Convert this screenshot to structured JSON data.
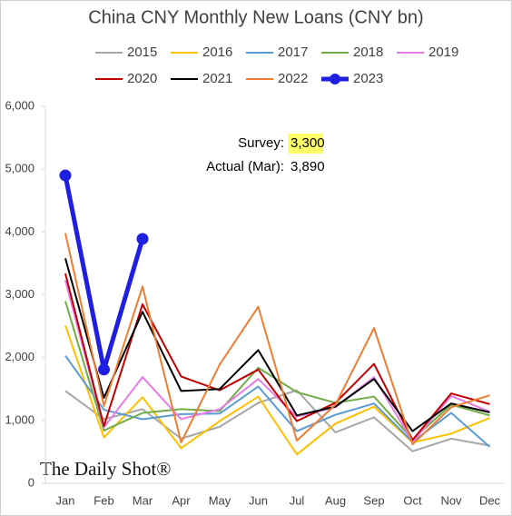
{
  "chart_data": {
    "type": "line",
    "title": "China CNY Monthly New Loans (CNY bn)",
    "categories": [
      "Jan",
      "Feb",
      "Mar",
      "Apr",
      "May",
      "Jun",
      "Jul",
      "Aug",
      "Sep",
      "Oct",
      "Nov",
      "Dec"
    ],
    "ylim": [
      0,
      6000
    ],
    "yticks": [
      0,
      {
        "value": 1000,
        "label": "1,000"
      },
      {
        "value": 2000,
        "label": "2,000"
      },
      {
        "value": 3000,
        "label": "3,000"
      },
      {
        "value": 4000,
        "label": "4,000"
      },
      {
        "value": 5000,
        "label": "5,000"
      },
      {
        "value": 6000,
        "label": "6,000"
      }
    ],
    "grid": false,
    "series": [
      {
        "name": "2015",
        "color": "#a6a6a6",
        "values": [
          1470,
          1020,
          1180,
          710,
          900,
          1280,
          1480,
          810,
          1050,
          510,
          710,
          600
        ]
      },
      {
        "name": "2016",
        "color": "#ffc000",
        "values": [
          2510,
          730,
          1370,
          560,
          990,
          1380,
          460,
          950,
          1220,
          650,
          790,
          1040
        ]
      },
      {
        "name": "2017",
        "color": "#5b9bd5",
        "values": [
          2030,
          1170,
          1020,
          1100,
          1110,
          1540,
          830,
          1090,
          1270,
          660,
          1120,
          580
        ]
      },
      {
        "name": "2018",
        "color": "#70ad47",
        "values": [
          2900,
          840,
          1120,
          1180,
          1150,
          1840,
          1450,
          1280,
          1380,
          700,
          1250,
          1080
        ]
      },
      {
        "name": "2019",
        "color": "#e97be9",
        "values": [
          3230,
          890,
          1690,
          1020,
          1180,
          1660,
          1060,
          1210,
          1690,
          660,
          1390,
          1140
        ]
      },
      {
        "name": "2020",
        "color": "#c00000",
        "values": [
          3340,
          910,
          2850,
          1700,
          1480,
          1810,
          990,
          1280,
          1900,
          690,
          1430,
          1260
        ]
      },
      {
        "name": "2021",
        "color": "#000000",
        "values": [
          3580,
          1360,
          2730,
          1470,
          1500,
          2120,
          1080,
          1220,
          1660,
          830,
          1270,
          1130
        ]
      },
      {
        "name": "2022",
        "color": "#ed7d31",
        "values": [
          3980,
          1230,
          3130,
          650,
          1890,
          2810,
          680,
          1250,
          2470,
          620,
          1210,
          1400
        ]
      },
      {
        "name": "2023",
        "color": "#1f1fe0",
        "values": [
          4900,
          1810,
          3890,
          null,
          null,
          null,
          null,
          null,
          null,
          null,
          null,
          null
        ]
      }
    ],
    "annotations": {
      "survey_label": "Survey:",
      "survey_value": "3,300",
      "actual_label": "Actual (Mar):",
      "actual_value": "3,890"
    },
    "source": "The Daily Shot®"
  }
}
